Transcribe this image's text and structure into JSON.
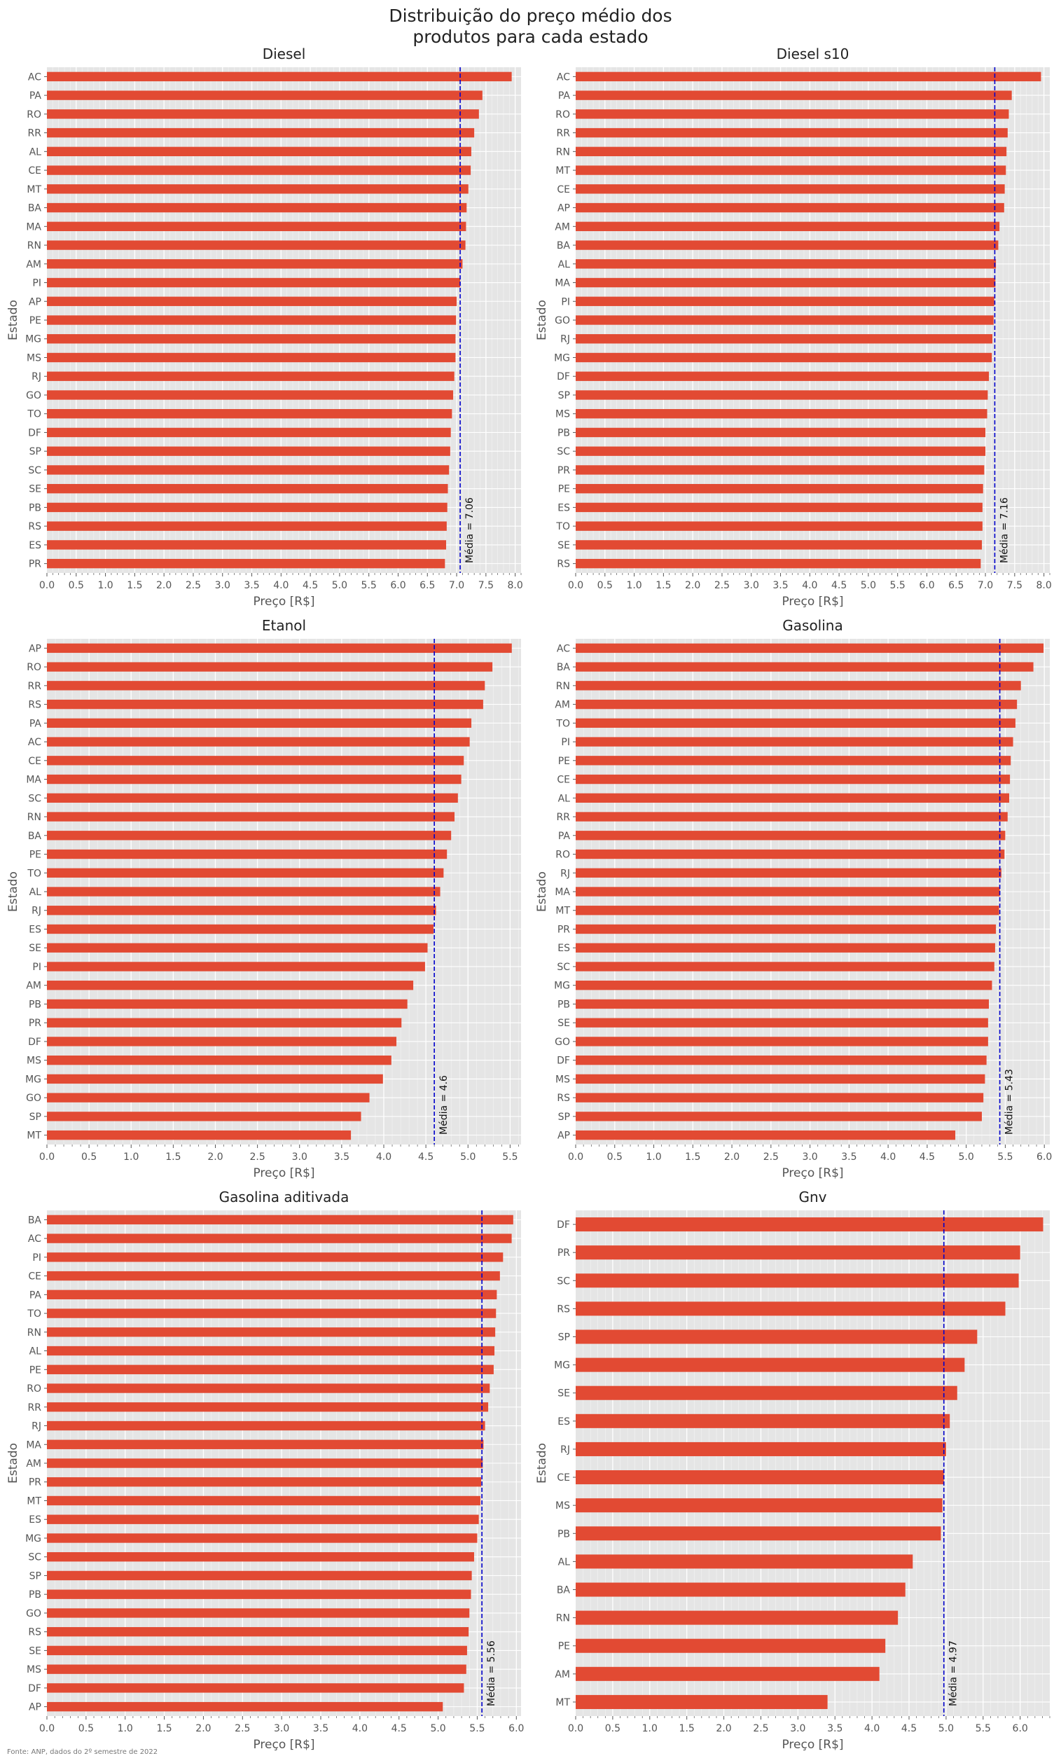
{
  "figure": {
    "title_lines": [
      "Distribuição do preço médio dos",
      "produtos para cada estado"
    ],
    "footnote": "Fonte: ANP, dados do 2º semestre de 2022",
    "colors": {
      "bar": "#E24A33",
      "mean_line": "#0000CC",
      "panel_bg": "#E5E5E5",
      "grid": "#FFFFFF"
    }
  },
  "chart_data": [
    {
      "type": "bar",
      "orientation": "horizontal",
      "title": "Diesel",
      "xlabel": "Preço [R$]",
      "ylabel": "Estado",
      "xlim": [
        0,
        8.1
      ],
      "xticks": [
        "0.0",
        "0.5",
        "1.0",
        "1.5",
        "2.0",
        "2.5",
        "3.0",
        "3.5",
        "4.0",
        "4.5",
        "5.0",
        "5.5",
        "6.0",
        "6.5",
        "7.0",
        "7.5",
        "8.0"
      ],
      "mean_label": "Média = 7.06",
      "mean": 7.06,
      "categories": [
        "AC",
        "PA",
        "RO",
        "RR",
        "AL",
        "CE",
        "MT",
        "BA",
        "MA",
        "RN",
        "AM",
        "PI",
        "AP",
        "PE",
        "MG",
        "MS",
        "RJ",
        "GO",
        "TO",
        "DF",
        "SP",
        "SC",
        "SE",
        "PB",
        "RS",
        "ES",
        "PR"
      ],
      "values": [
        7.94,
        7.44,
        7.38,
        7.3,
        7.25,
        7.24,
        7.2,
        7.17,
        7.16,
        7.15,
        7.1,
        7.06,
        7.0,
        6.99,
        6.98,
        6.98,
        6.96,
        6.94,
        6.92,
        6.9,
        6.89,
        6.87,
        6.85,
        6.84,
        6.83,
        6.82,
        6.8
      ]
    },
    {
      "type": "bar",
      "orientation": "horizontal",
      "title": "Diesel s10",
      "xlabel": "Preço [R$]",
      "ylabel": "Estado",
      "xlim": [
        0,
        8.1
      ],
      "xticks": [
        "0.0",
        "0.5",
        "1.0",
        "1.5",
        "2.0",
        "2.5",
        "3.0",
        "3.5",
        "4.0",
        "4.5",
        "5.0",
        "5.5",
        "6.0",
        "6.5",
        "7.0",
        "7.5",
        "8.0"
      ],
      "mean_label": "Média = 7.16",
      "mean": 7.16,
      "categories": [
        "AC",
        "PA",
        "RO",
        "RR",
        "RN",
        "MT",
        "CE",
        "AP",
        "AM",
        "BA",
        "AL",
        "MA",
        "PI",
        "GO",
        "RJ",
        "MG",
        "DF",
        "SP",
        "MS",
        "PB",
        "SC",
        "PR",
        "PE",
        "ES",
        "TO",
        "SE",
        "RS"
      ],
      "values": [
        7.95,
        7.45,
        7.4,
        7.38,
        7.36,
        7.35,
        7.33,
        7.32,
        7.24,
        7.22,
        7.18,
        7.17,
        7.15,
        7.14,
        7.12,
        7.11,
        7.06,
        7.04,
        7.03,
        7.0,
        7.0,
        6.98,
        6.96,
        6.95,
        6.95,
        6.94,
        6.92
      ]
    },
    {
      "type": "bar",
      "orientation": "horizontal",
      "title": "Etanol",
      "xlabel": "Preço [R$]",
      "ylabel": "Estado",
      "xlim": [
        0,
        5.63
      ],
      "xticks": [
        "0.0",
        "0.5",
        "1.0",
        "1.5",
        "2.0",
        "2.5",
        "3.0",
        "3.5",
        "4.0",
        "4.5",
        "5.0",
        "5.5"
      ],
      "mean_label": "Média = 4.6",
      "mean": 4.6,
      "categories": [
        "AP",
        "RO",
        "RR",
        "RS",
        "PA",
        "AC",
        "CE",
        "MA",
        "SC",
        "RN",
        "BA",
        "PE",
        "TO",
        "AL",
        "RJ",
        "ES",
        "SE",
        "PI",
        "AM",
        "PB",
        "PR",
        "DF",
        "MS",
        "MG",
        "GO",
        "SP",
        "MT"
      ],
      "values": [
        5.52,
        5.29,
        5.2,
        5.18,
        5.04,
        5.02,
        4.95,
        4.92,
        4.88,
        4.84,
        4.8,
        4.75,
        4.71,
        4.67,
        4.62,
        4.59,
        4.52,
        4.49,
        4.35,
        4.28,
        4.21,
        4.15,
        4.09,
        3.99,
        3.83,
        3.73,
        3.61
      ]
    },
    {
      "type": "bar",
      "orientation": "horizontal",
      "title": "Gasolina",
      "xlabel": "Preço [R$]",
      "ylabel": "Estado",
      "xlim": [
        0,
        6.07
      ],
      "xticks": [
        "0.0",
        "0.5",
        "1.0",
        "1.5",
        "2.0",
        "2.5",
        "3.0",
        "3.5",
        "4.0",
        "4.5",
        "5.0",
        "5.5",
        "6.0"
      ],
      "mean_label": "Média = 5.43",
      "mean": 5.43,
      "categories": [
        "AC",
        "BA",
        "RN",
        "AM",
        "TO",
        "PI",
        "PE",
        "CE",
        "AL",
        "RR",
        "PA",
        "RO",
        "RJ",
        "MA",
        "MT",
        "PR",
        "ES",
        "SC",
        "MG",
        "PB",
        "SE",
        "GO",
        "DF",
        "MS",
        "RS",
        "SP",
        "AP"
      ],
      "values": [
        5.99,
        5.86,
        5.7,
        5.65,
        5.63,
        5.6,
        5.57,
        5.56,
        5.55,
        5.53,
        5.5,
        5.49,
        5.45,
        5.43,
        5.42,
        5.38,
        5.37,
        5.36,
        5.33,
        5.29,
        5.28,
        5.28,
        5.26,
        5.24,
        5.22,
        5.2,
        4.86
      ]
    },
    {
      "type": "bar",
      "orientation": "horizontal",
      "title": "Gasolina aditivada",
      "xlabel": "Preço [R$]",
      "ylabel": "Estado",
      "xlim": [
        0,
        6.06
      ],
      "xticks": [
        "0.0",
        "0.5",
        "1.0",
        "1.5",
        "2.0",
        "2.5",
        "3.0",
        "3.5",
        "4.0",
        "4.5",
        "5.0",
        "5.5",
        "6.0"
      ],
      "mean_label": "Média = 5.56",
      "mean": 5.56,
      "categories": [
        "BA",
        "AC",
        "PI",
        "CE",
        "PA",
        "TO",
        "RN",
        "AL",
        "PE",
        "RO",
        "RR",
        "RJ",
        "MA",
        "AM",
        "PR",
        "MT",
        "ES",
        "MG",
        "SC",
        "SP",
        "PB",
        "GO",
        "RS",
        "SE",
        "MS",
        "DF",
        "AP"
      ],
      "values": [
        5.96,
        5.94,
        5.83,
        5.79,
        5.75,
        5.74,
        5.73,
        5.72,
        5.71,
        5.66,
        5.64,
        5.6,
        5.58,
        5.57,
        5.55,
        5.54,
        5.52,
        5.5,
        5.46,
        5.43,
        5.42,
        5.4,
        5.39,
        5.37,
        5.36,
        5.33,
        5.06
      ]
    },
    {
      "type": "bar",
      "orientation": "horizontal",
      "title": "Gnv",
      "xlabel": "Preço [R$]",
      "ylabel": "Estado",
      "xlim": [
        0,
        6.4
      ],
      "xticks": [
        "0.0",
        "0.5",
        "1.0",
        "1.5",
        "2.0",
        "2.5",
        "3.0",
        "3.5",
        "4.0",
        "4.5",
        "5.0",
        "5.5",
        "6.0"
      ],
      "mean_label": "Média = 4.97",
      "mean": 4.97,
      "categories": [
        "DF",
        "PR",
        "SC",
        "RS",
        "SP",
        "MG",
        "SE",
        "ES",
        "RJ",
        "CE",
        "MS",
        "PB",
        "AL",
        "BA",
        "RN",
        "PE",
        "AM",
        "MT"
      ],
      "values": [
        6.31,
        6.0,
        5.98,
        5.8,
        5.42,
        5.25,
        5.15,
        5.05,
        5.0,
        4.97,
        4.95,
        4.93,
        4.55,
        4.45,
        4.35,
        4.18,
        4.1,
        3.4
      ]
    }
  ]
}
